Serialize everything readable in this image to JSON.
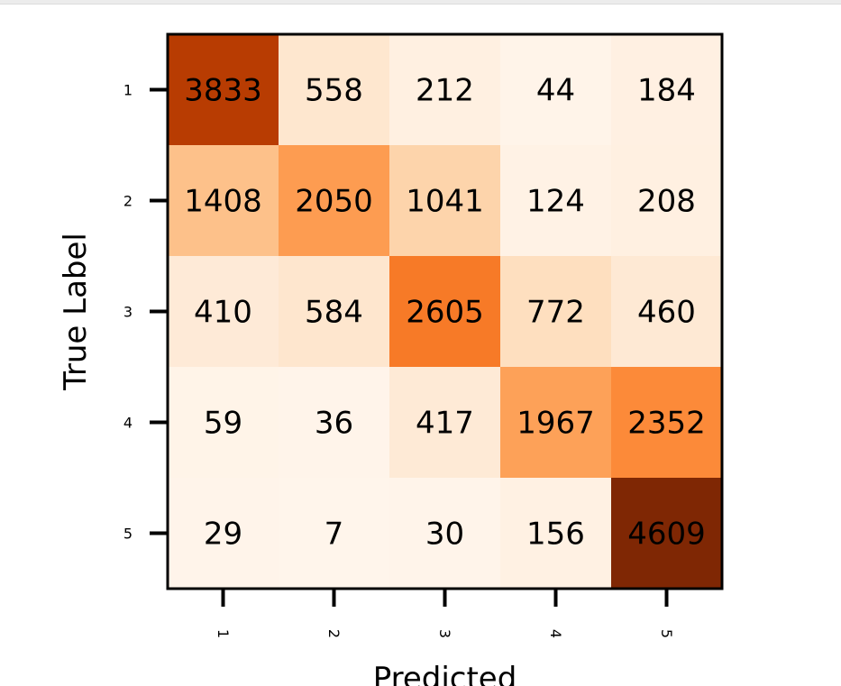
{
  "chart_data": {
    "type": "heatmap",
    "title": "",
    "xlabel": "Predicted",
    "ylabel": "True Label",
    "x_categories": [
      "1",
      "2",
      "3",
      "4",
      "5"
    ],
    "y_categories": [
      "1",
      "2",
      "3",
      "4",
      "5"
    ],
    "values": [
      [
        3833,
        558,
        212,
        44,
        184
      ],
      [
        1408,
        2050,
        1041,
        124,
        208
      ],
      [
        410,
        584,
        2605,
        772,
        460
      ],
      [
        59,
        36,
        417,
        1967,
        2352
      ],
      [
        29,
        7,
        30,
        156,
        4609
      ]
    ],
    "colormap": "Oranges",
    "x_tick_rotation": "270",
    "colorbar": false,
    "grid": false
  }
}
